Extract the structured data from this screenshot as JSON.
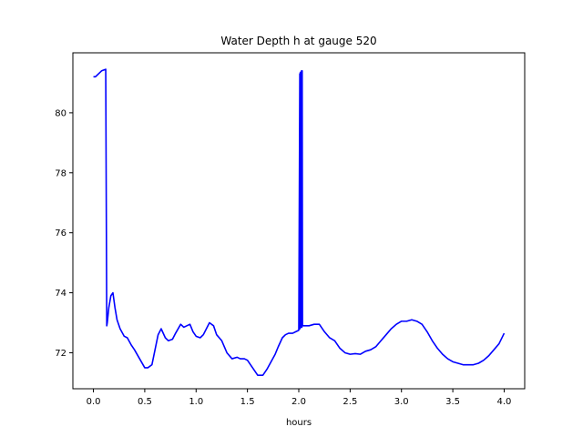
{
  "chart_data": {
    "type": "line",
    "title": "Water Depth h at gauge 520",
    "xlabel": "hours",
    "ylabel": "",
    "xlim": [
      -0.2,
      4.2
    ],
    "ylim": [
      70.8,
      82.0
    ],
    "x_ticks": [
      0.0,
      0.5,
      1.0,
      1.5,
      2.0,
      2.5,
      3.0,
      3.5,
      4.0
    ],
    "x_tick_labels": [
      "0.0",
      "0.5",
      "1.0",
      "1.5",
      "2.0",
      "2.5",
      "3.0",
      "3.5",
      "4.0"
    ],
    "y_ticks": [
      72,
      74,
      76,
      78,
      80
    ],
    "y_tick_labels": [
      "72",
      "74",
      "76",
      "78",
      "80"
    ],
    "grid": false,
    "line_color": "#0000ff",
    "series": [
      {
        "x": [
          0.0,
          0.02,
          0.05,
          0.08,
          0.12,
          0.13,
          0.135,
          0.15,
          0.17,
          0.19,
          0.21,
          0.23,
          0.26,
          0.3,
          0.33,
          0.37,
          0.4,
          0.45,
          0.5,
          0.53,
          0.57,
          0.6,
          0.63,
          0.66,
          0.7,
          0.73,
          0.77,
          0.8,
          0.85,
          0.88,
          0.91,
          0.94,
          0.97,
          1.0,
          1.04,
          1.07,
          1.1,
          1.13,
          1.17,
          1.2,
          1.25,
          1.3,
          1.35,
          1.4,
          1.43,
          1.47,
          1.5,
          1.55,
          1.6,
          1.65,
          1.69,
          1.73,
          1.77,
          1.8,
          1.84,
          1.87,
          1.9,
          1.94,
          1.97,
          2.0,
          2.01,
          2.012,
          2.015,
          2.018,
          2.021,
          2.024,
          2.027,
          2.03,
          2.033,
          2.036,
          2.04,
          2.05,
          2.1,
          2.15,
          2.2,
          2.25,
          2.3,
          2.35,
          2.4,
          2.45,
          2.5,
          2.55,
          2.6,
          2.65,
          2.7,
          2.75,
          2.8,
          2.85,
          2.9,
          2.95,
          3.0,
          3.05,
          3.1,
          3.15,
          3.2,
          3.25,
          3.3,
          3.35,
          3.4,
          3.45,
          3.5,
          3.55,
          3.6,
          3.65,
          3.7,
          3.75,
          3.8,
          3.85,
          3.9,
          3.95,
          4.0
        ],
        "y": [
          81.2,
          81.2,
          81.3,
          81.4,
          81.45,
          72.9,
          73.0,
          73.5,
          73.9,
          74.0,
          73.5,
          73.1,
          72.8,
          72.55,
          72.5,
          72.25,
          72.1,
          71.8,
          71.5,
          71.5,
          71.6,
          72.1,
          72.6,
          72.8,
          72.5,
          72.4,
          72.45,
          72.65,
          72.95,
          72.85,
          72.9,
          72.95,
          72.7,
          72.55,
          72.5,
          72.6,
          72.8,
          73.0,
          72.9,
          72.6,
          72.4,
          72.0,
          71.8,
          71.85,
          71.8,
          71.8,
          71.75,
          71.5,
          71.25,
          71.25,
          71.45,
          71.7,
          71.95,
          72.2,
          72.5,
          72.6,
          72.65,
          72.65,
          72.7,
          72.75,
          81.3,
          72.8,
          81.35,
          72.85,
          81.35,
          72.85,
          81.4,
          72.85,
          81.4,
          72.9,
          72.9,
          72.9,
          72.9,
          72.95,
          72.95,
          72.7,
          72.5,
          72.4,
          72.15,
          72.0,
          71.95,
          71.97,
          71.95,
          72.05,
          72.1,
          72.2,
          72.4,
          72.6,
          72.8,
          72.95,
          73.05,
          73.05,
          73.1,
          73.05,
          72.95,
          72.7,
          72.4,
          72.15,
          71.95,
          71.8,
          71.7,
          71.65,
          71.6,
          71.6,
          71.6,
          71.65,
          71.75,
          71.9,
          72.1,
          72.3,
          72.65
        ]
      }
    ]
  }
}
